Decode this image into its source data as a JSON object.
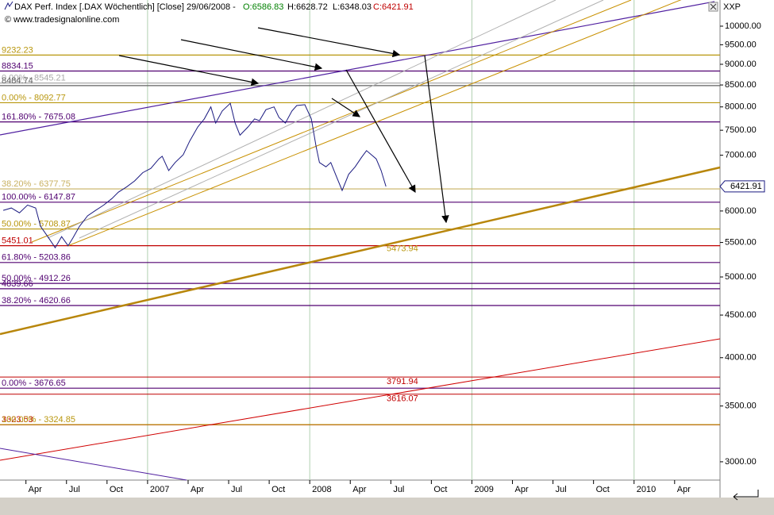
{
  "chart_data": {
    "type": "line",
    "title": "DAX Perf. Index [.DAX Wöchentlich] [Close] 29/06/2008 -",
    "open": "O:6586.83",
    "high": "H:6628.72",
    "low": "L:6348.03",
    "close": "C:6421.91",
    "source": "© www.tradesignalonline.com",
    "symbol": "XXP",
    "last_price": 6421.91,
    "log_scale": true,
    "xlim": [
      2006.09,
      2010.53
    ],
    "ylim": [
      2852,
      10750
    ],
    "xticks": [
      {
        "value": 2006.25,
        "label": "Apr"
      },
      {
        "value": 2006.5,
        "label": "Jul"
      },
      {
        "value": 2006.75,
        "label": "Oct"
      },
      {
        "value": 2007,
        "label": "2007"
      },
      {
        "value": 2007.25,
        "label": "Apr"
      },
      {
        "value": 2007.5,
        "label": "Jul"
      },
      {
        "value": 2007.75,
        "label": "Oct"
      },
      {
        "value": 2008,
        "label": "2008"
      },
      {
        "value": 2008.25,
        "label": "Apr"
      },
      {
        "value": 2008.5,
        "label": "Jul"
      },
      {
        "value": 2008.75,
        "label": "Oct"
      },
      {
        "value": 2009,
        "label": "2009"
      },
      {
        "value": 2009.25,
        "label": "Apr"
      },
      {
        "value": 2009.5,
        "label": "Jul"
      },
      {
        "value": 2009.75,
        "label": "Oct"
      },
      {
        "value": 2010,
        "label": "2010"
      },
      {
        "value": 2010.25,
        "label": "Apr"
      }
    ],
    "yticks": [
      {
        "value": 3000,
        "label": "3000.00"
      },
      {
        "value": 3500,
        "label": "3500.00"
      },
      {
        "value": 4000,
        "label": "4000.00"
      },
      {
        "value": 4500,
        "label": "4500.00"
      },
      {
        "value": 5000,
        "label": "5000.00"
      },
      {
        "value": 5500,
        "label": "5500.00"
      },
      {
        "value": 6000,
        "label": "6000.00"
      },
      {
        "value": 7000,
        "label": "7000.00"
      },
      {
        "value": 7500,
        "label": "7500.00"
      },
      {
        "value": 8000,
        "label": "8000.00"
      },
      {
        "value": 8500,
        "label": "8500.00"
      },
      {
        "value": 9000,
        "label": "9000.00"
      },
      {
        "value": 9500,
        "label": "9500.00"
      },
      {
        "value": 10000,
        "label": "10000.00"
      }
    ],
    "series": [
      {
        "name": "DAX",
        "color": "#1a1a80",
        "x": [
          2006.11,
          2006.16,
          2006.21,
          2006.26,
          2006.31,
          2006.34,
          2006.39,
          2006.43,
          2006.47,
          2006.51,
          2006.54,
          2006.58,
          2006.63,
          2006.68,
          2006.73,
          2006.78,
          2006.82,
          2006.87,
          2006.92,
          2006.97,
          2007.02,
          2007.07,
          2007.09,
          2007.13,
          2007.17,
          2007.22,
          2007.26,
          2007.31,
          2007.35,
          2007.39,
          2007.42,
          2007.46,
          2007.51,
          2007.54,
          2007.57,
          2007.62,
          2007.66,
          2007.69,
          2007.73,
          2007.78,
          2007.81,
          2007.85,
          2007.89,
          2007.92,
          2007.97,
          2008.01,
          2008.04,
          2008.06,
          2008.1,
          2008.13,
          2008.17,
          2008.2,
          2008.24,
          2008.28,
          2008.32,
          2008.35,
          2008.38,
          2008.41,
          2008.44,
          2008.47
        ],
        "values": [
          6010,
          6050,
          5970,
          6100,
          6050,
          5750,
          5570,
          5420,
          5590,
          5450,
          5570,
          5750,
          5920,
          6010,
          6100,
          6210,
          6320,
          6410,
          6520,
          6670,
          6750,
          6930,
          6980,
          6710,
          6860,
          7010,
          7280,
          7570,
          7740,
          8000,
          7650,
          7910,
          8080,
          7650,
          7400,
          7570,
          7740,
          7700,
          7940,
          8000,
          7770,
          7650,
          7910,
          8030,
          8050,
          7740,
          7160,
          6860,
          6780,
          6860,
          6560,
          6350,
          6640,
          6780,
          6960,
          7090,
          7010,
          6930,
          6710,
          6420
        ]
      }
    ],
    "levels": [
      {
        "label": "9232.23",
        "value": 9232.23,
        "color": "#b8960c"
      },
      {
        "label": "8834.15",
        "value": 8834.15,
        "color": "#500070"
      },
      {
        "label": "0.00% - 8545.21",
        "value": 8545.21,
        "color": "#a8a8a8"
      },
      {
        "label": "8484.74",
        "value": 8484.74,
        "color": "#606060"
      },
      {
        "label": "0.00% - 8092.77",
        "value": 8092.77,
        "color": "#b8960c"
      },
      {
        "label": "161.80% - 7675.08",
        "value": 7675.08,
        "color": "#500070"
      },
      {
        "label": "38.20% - 6377.75",
        "value": 6377.75,
        "color": "#c8b060"
      },
      {
        "label": "100.00% - 6147.87",
        "value": 6147.87,
        "color": "#500070"
      },
      {
        "label": "50.00% - 5708.87",
        "value": 5708.87,
        "color": "#b8960c"
      },
      {
        "label": "5451.01",
        "value": 5451.01,
        "color": "#c00000"
      },
      {
        "label": "61.80% - 5203.86",
        "value": 5203.86,
        "color": "#500070"
      },
      {
        "label": "50.00% - 4912.26",
        "value": 4912.26,
        "color": "#500070"
      },
      {
        "label": "4839.66",
        "value": 4839.66,
        "color": "#500070"
      },
      {
        "label": "38.20% - 4620.66",
        "value": 4620.66,
        "color": "#500070"
      },
      {
        "label": "0.00% - 3676.65",
        "value": 3676.65,
        "color": "#500070"
      },
      {
        "label": "3323.53",
        "value": 3323.53,
        "color": "#c00000"
      },
      {
        "label": "100.00% - 3324.85",
        "value": 3324.85,
        "color": "#b8960c"
      }
    ],
    "mid_levels": [
      {
        "label": "5473.94",
        "value": 5473.94,
        "color": "#b8960c"
      },
      {
        "label": "3791.94",
        "value": 3791.94,
        "color": "#c00000"
      },
      {
        "label": "3616.07",
        "value": 3616.07,
        "color": "#c00000"
      }
    ]
  }
}
